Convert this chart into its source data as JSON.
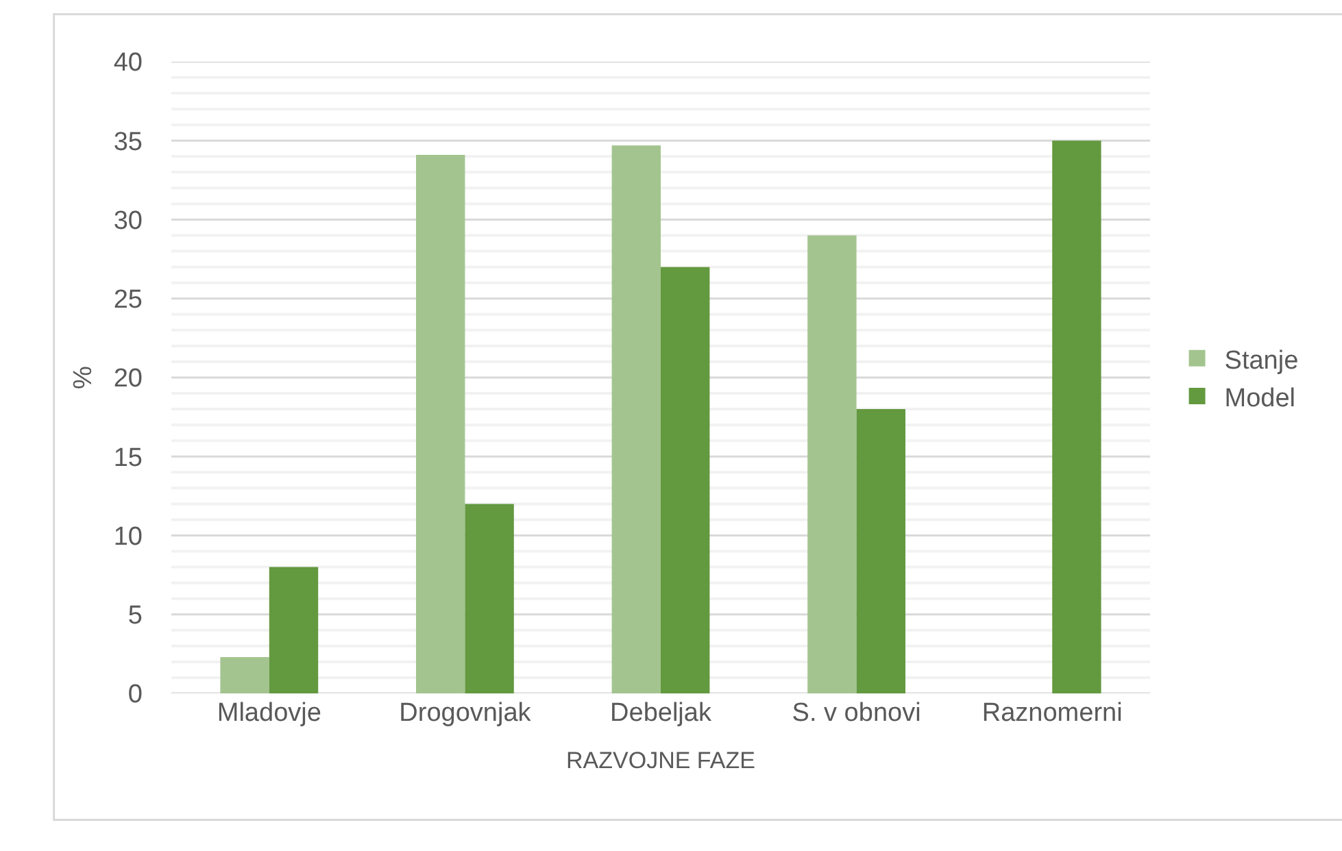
{
  "chart_data": {
    "type": "bar",
    "xlabel": "RAZVOJNE FAZE",
    "ylabel": "%",
    "categories": [
      "Mladovje",
      "Drogovnjak",
      "Debeljak",
      "S. v obnovi",
      "Raznomerni"
    ],
    "series": [
      {
        "name": "Stanje",
        "color": "#a3c48f",
        "values": [
          2.3,
          34.1,
          34.7,
          29,
          0
        ]
      },
      {
        "name": "Model",
        "color": "#63993f",
        "values": [
          8,
          12,
          27,
          18,
          35
        ]
      }
    ],
    "ylim": [
      0,
      40
    ],
    "yticks": [
      0,
      {
        "value": 1,
        "label": null
      },
      {
        "value": 2,
        "label": null
      },
      {
        "value": 3,
        "label": null
      },
      {
        "value": 4,
        "label": null
      },
      5,
      {
        "value": 6,
        "label": null
      },
      {
        "value": 7,
        "label": null
      },
      {
        "value": 8,
        "label": null
      },
      {
        "value": 9,
        "label": null
      },
      10,
      {
        "value": 11,
        "label": null
      },
      {
        "value": 12,
        "label": null
      },
      {
        "value": 13,
        "label": null
      },
      {
        "value": 14,
        "label": null
      },
      15,
      {
        "value": 16,
        "label": null
      },
      {
        "value": 17,
        "label": null
      },
      {
        "value": 18,
        "label": null
      },
      {
        "value": 19,
        "label": null
      },
      20,
      {
        "value": 21,
        "label": null
      },
      {
        "value": 22,
        "label": null
      },
      {
        "value": 23,
        "label": null
      },
      {
        "value": 24,
        "label": null
      },
      25,
      {
        "value": 26,
        "label": null
      },
      {
        "value": 27,
        "label": null
      },
      {
        "value": 28,
        "label": null
      },
      {
        "value": 29,
        "label": null
      },
      30,
      {
        "value": 31,
        "label": null
      },
      {
        "value": 32,
        "label": null
      },
      {
        "value": 33,
        "label": null
      },
      {
        "value": 34,
        "label": null
      },
      35,
      {
        "value": 36,
        "label": null
      },
      {
        "value": 37,
        "label": null
      },
      {
        "value": 38,
        "label": null
      },
      {
        "value": 39,
        "label": null
      },
      40
    ],
    "grid": "y",
    "legend": "right"
  }
}
